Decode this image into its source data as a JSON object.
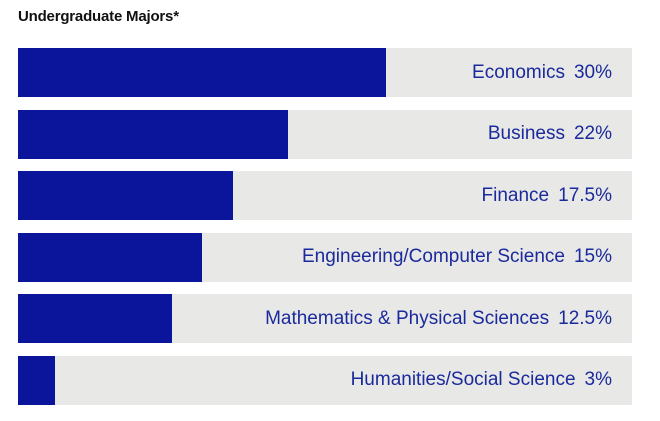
{
  "chart_data": {
    "type": "bar",
    "orientation": "horizontal",
    "title": "Undergraduate Majors*",
    "xlabel": "",
    "ylabel": "",
    "xlim": [
      0,
      50
    ],
    "grid": false,
    "legend": "none",
    "categories": [
      "Economics",
      "Business",
      "Finance",
      "Engineering/Computer Science",
      "Mathematics & Physical Sciences",
      "Humanities/Social Science"
    ],
    "values": [
      30,
      22,
      17.5,
      15,
      12.5,
      3
    ],
    "value_labels": [
      "30%",
      "22%",
      "17.5%",
      "15%",
      "12.5%",
      "3%"
    ],
    "colors": {
      "bar": "#0b159b",
      "track": "#e8e8e6",
      "label": "#1a2a9c",
      "title": "#111111"
    }
  }
}
